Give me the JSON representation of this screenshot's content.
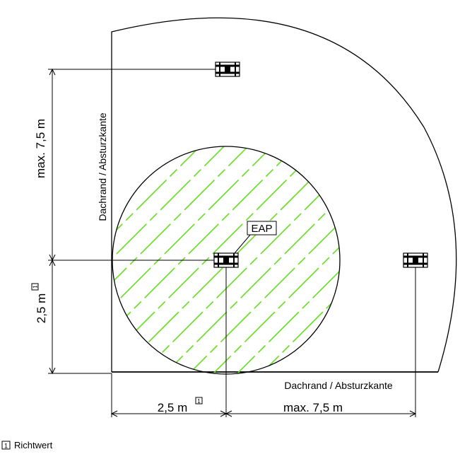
{
  "labels": {
    "edge_vertical": "Dachrand / Absturzkante",
    "edge_horizontal": "Dachrand / Absturzkante",
    "eap": "EAP",
    "dim_max_vertical": "max. 7,5 m",
    "dim_2_5_vertical": "2,5 m",
    "dim_2_5_horizontal": "2,5 m",
    "dim_max_horizontal": "max. 7,5 m",
    "note_marker": "1",
    "legend_text": "Richtwert"
  },
  "colors": {
    "line": "#000000",
    "hatch": "#66dd22"
  }
}
